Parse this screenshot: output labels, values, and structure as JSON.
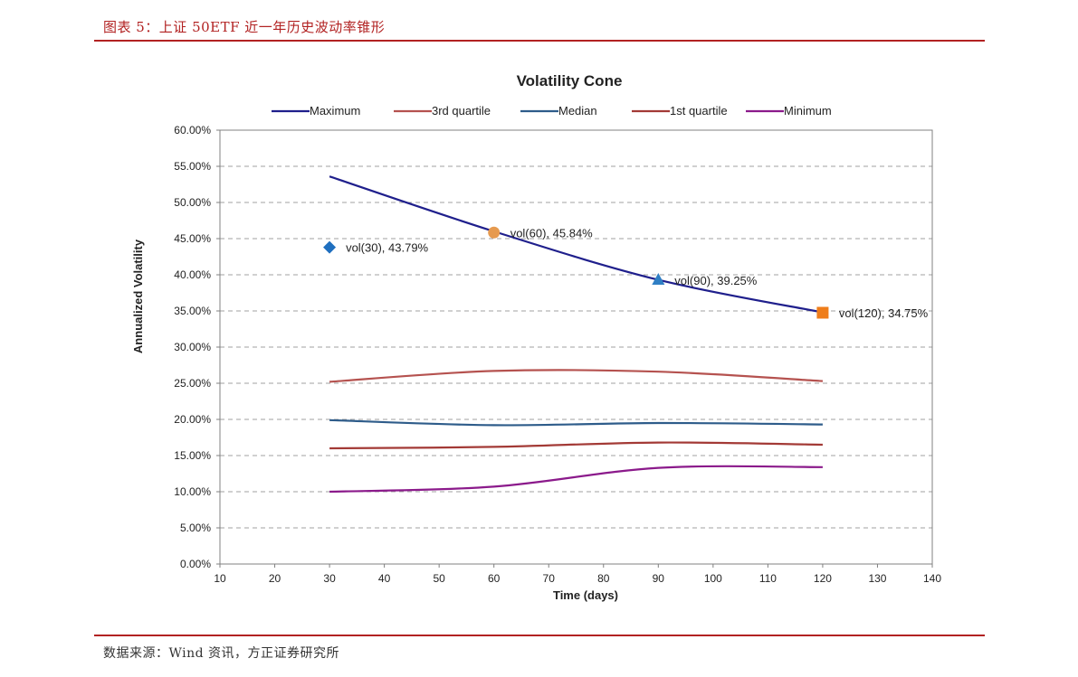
{
  "header": {
    "title": "图表 5：上证 50ETF 近一年历史波动率锥形"
  },
  "footer": {
    "source": "数据来源：Wind 资讯，方正证券研究所"
  },
  "colors": {
    "maximum": "#1f1f8c",
    "third_quartile": "#b5524f",
    "median": "#2e5c8a",
    "first_quartile": "#a33a36",
    "minimum": "#8b1a8b",
    "vol30": "#1f6fbf",
    "vol60": "#e69a4f",
    "vol90": "#2f7fc4",
    "vol120": "#ef7d1a",
    "grid": "#a0a0a0",
    "header_red": "#b22222"
  },
  "chart_data": {
    "type": "line",
    "title": "Volatility Cone",
    "xlabel": "Time (days)",
    "ylabel": "Annualized Volatility",
    "xlim": [
      10,
      140
    ],
    "ylim": [
      0,
      60
    ],
    "x_ticks": [
      "10",
      "20",
      "30",
      "40",
      "50",
      "60",
      "70",
      "80",
      "90",
      "100",
      "110",
      "120",
      "130",
      "140"
    ],
    "y_ticks": [
      "0.00%",
      "5.00%",
      "10.00%",
      "15.00%",
      "20.00%",
      "25.00%",
      "30.00%",
      "35.00%",
      "40.00%",
      "45.00%",
      "50.00%",
      "55.00%",
      "60.00%"
    ],
    "grid": "horizontal dashed",
    "legend_position": "top",
    "x": [
      30,
      60,
      90,
      120
    ],
    "series": [
      {
        "name": "Maximum",
        "values": [
          53.6,
          46.0,
          39.3,
          34.8
        ]
      },
      {
        "name": "3rd quartile",
        "values": [
          25.2,
          26.7,
          26.6,
          25.3
        ]
      },
      {
        "name": "Median",
        "values": [
          19.9,
          19.2,
          19.5,
          19.3
        ]
      },
      {
        "name": "1st quartile",
        "values": [
          16.0,
          16.2,
          16.8,
          16.5
        ]
      },
      {
        "name": "Minimum",
        "values": [
          10.0,
          10.7,
          13.3,
          13.4
        ]
      }
    ],
    "points": [
      {
        "x": 30,
        "y": 43.79,
        "marker": "diamond",
        "label": "vol(30), 43.79%"
      },
      {
        "x": 60,
        "y": 45.84,
        "marker": "circle",
        "label": "vol(60), 45.84%"
      },
      {
        "x": 90,
        "y": 39.25,
        "marker": "triangle",
        "label": "vol(90), 39.25%"
      },
      {
        "x": 120,
        "y": 34.75,
        "marker": "square",
        "label": "vol(120), 34.75%"
      }
    ]
  }
}
